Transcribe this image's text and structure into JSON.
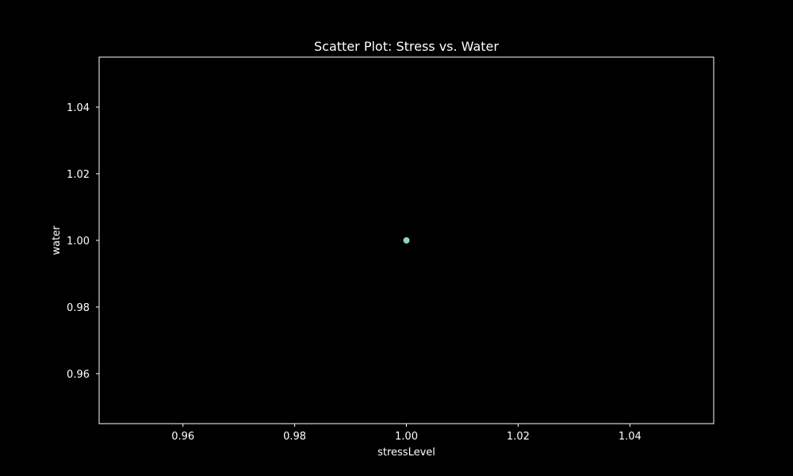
{
  "chart_data": {
    "type": "scatter",
    "title": "Scatter Plot: Stress vs. Water",
    "xlabel": "stressLevel",
    "ylabel": "water",
    "xlim": [
      0.945,
      1.055
    ],
    "ylim": [
      0.945,
      1.055
    ],
    "xticks": [
      0.96,
      0.98,
      1.0,
      1.02,
      1.04
    ],
    "xtick_labels": [
      "0.96",
      "0.98",
      "1.00",
      "1.02",
      "1.04"
    ],
    "yticks": [
      0.96,
      0.98,
      1.0,
      1.02,
      1.04
    ],
    "ytick_labels": [
      "0.96",
      "0.98",
      "1.00",
      "1.02",
      "1.04"
    ],
    "grid": false,
    "series": [
      {
        "x": [
          1.0
        ],
        "y": [
          1.0
        ],
        "color": "#8dd3c7"
      }
    ],
    "colors": {
      "background": "#000000",
      "axes": "#ffffff",
      "text": "#ffffff"
    }
  }
}
